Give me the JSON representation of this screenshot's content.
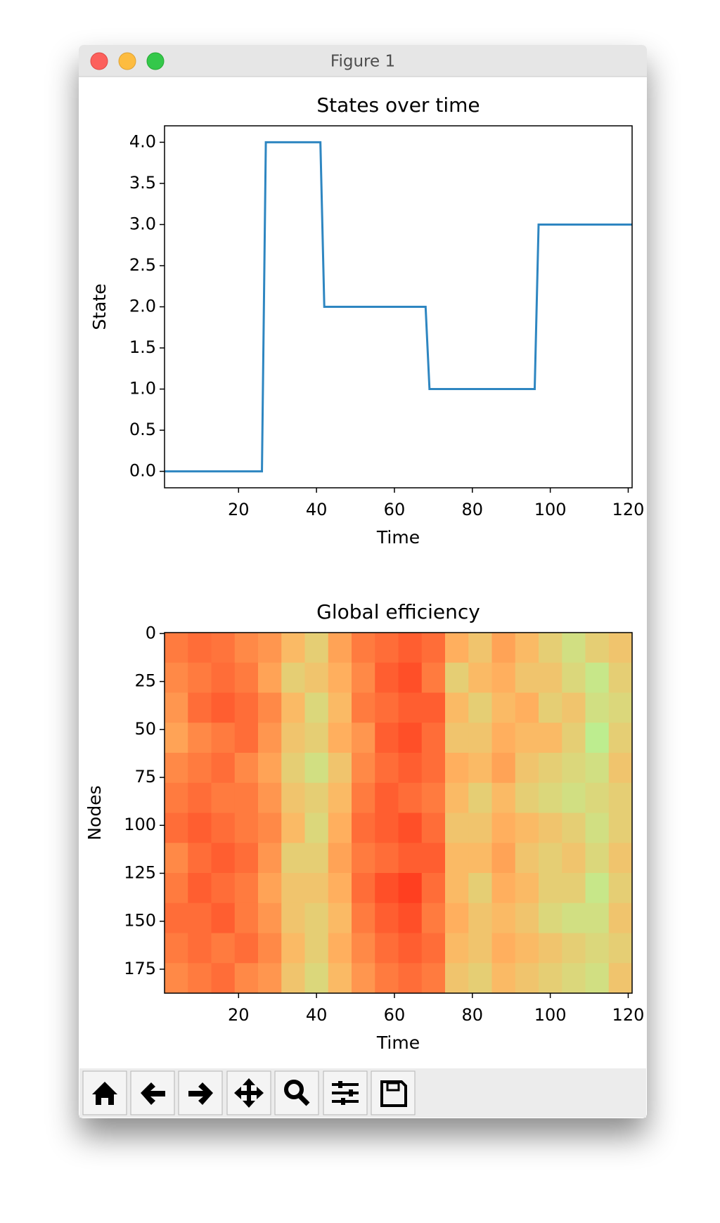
{
  "window": {
    "title": "Figure 1"
  },
  "chart_data": [
    {
      "type": "line",
      "title": "States over time",
      "x_label": "Time",
      "y_label": "State",
      "color": "#2e86c1",
      "x": [
        1,
        26,
        27,
        41,
        42,
        68,
        69,
        96,
        97,
        121
      ],
      "values": [
        0,
        0,
        4,
        4,
        2,
        2,
        1,
        1,
        3,
        3
      ],
      "xlim": [
        1,
        121
      ],
      "ylim": [
        -0.2,
        4.2
      ],
      "xticks": [
        20,
        40,
        60,
        80,
        100,
        120
      ],
      "yticks": [
        {
          "value": 0,
          "label": "0.0"
        },
        {
          "value": 0.5,
          "label": "0.5"
        },
        {
          "value": 1,
          "label": "1.0"
        },
        {
          "value": 1.5,
          "label": "1.5"
        },
        {
          "value": 2,
          "label": "2.0"
        },
        {
          "value": 2.5,
          "label": "2.5"
        },
        {
          "value": 3,
          "label": "3.0"
        },
        {
          "value": 3.5,
          "label": "3.5"
        },
        {
          "value": 4,
          "label": "4.0"
        }
      ]
    },
    {
      "type": "heatmap",
      "title": "Global efficiency",
      "x_label": "Time",
      "y_label": "Nodes",
      "colormap": "rainbow",
      "clim": [
        0,
        1
      ],
      "xlim": [
        1,
        121
      ],
      "ylim": [
        187.5,
        -0.5
      ],
      "xticks": [
        20,
        40,
        60,
        80,
        100,
        120
      ],
      "yticks": [
        0,
        25,
        50,
        75,
        100,
        125,
        150,
        175
      ],
      "values": [
        [
          0.84,
          0.86,
          0.85,
          0.82,
          0.8,
          0.74,
          0.7,
          0.78,
          0.84,
          0.86,
          0.88,
          0.86,
          0.76,
          0.72,
          0.78,
          0.74,
          0.7,
          0.66,
          0.7,
          0.72
        ],
        [
          0.82,
          0.84,
          0.86,
          0.84,
          0.78,
          0.7,
          0.72,
          0.76,
          0.82,
          0.88,
          0.9,
          0.84,
          0.7,
          0.74,
          0.76,
          0.72,
          0.72,
          0.68,
          0.64,
          0.7
        ],
        [
          0.8,
          0.86,
          0.88,
          0.86,
          0.82,
          0.74,
          0.68,
          0.74,
          0.84,
          0.86,
          0.88,
          0.88,
          0.74,
          0.7,
          0.74,
          0.76,
          0.7,
          0.72,
          0.66,
          0.68
        ],
        [
          0.78,
          0.82,
          0.84,
          0.86,
          0.8,
          0.72,
          0.7,
          0.76,
          0.8,
          0.88,
          0.9,
          0.86,
          0.72,
          0.72,
          0.76,
          0.74,
          0.74,
          0.7,
          0.62,
          0.7
        ],
        [
          0.82,
          0.84,
          0.86,
          0.82,
          0.78,
          0.7,
          0.66,
          0.72,
          0.82,
          0.86,
          0.88,
          0.86,
          0.76,
          0.74,
          0.78,
          0.72,
          0.7,
          0.68,
          0.66,
          0.72
        ],
        [
          0.84,
          0.86,
          0.84,
          0.84,
          0.8,
          0.72,
          0.7,
          0.74,
          0.84,
          0.88,
          0.86,
          0.84,
          0.74,
          0.7,
          0.74,
          0.7,
          0.68,
          0.66,
          0.68,
          0.7
        ],
        [
          0.86,
          0.88,
          0.86,
          0.84,
          0.82,
          0.74,
          0.68,
          0.76,
          0.86,
          0.88,
          0.9,
          0.86,
          0.72,
          0.72,
          0.76,
          0.74,
          0.72,
          0.7,
          0.66,
          0.7
        ],
        [
          0.82,
          0.86,
          0.88,
          0.86,
          0.8,
          0.7,
          0.7,
          0.78,
          0.84,
          0.86,
          0.88,
          0.88,
          0.74,
          0.74,
          0.78,
          0.72,
          0.7,
          0.72,
          0.68,
          0.72
        ],
        [
          0.84,
          0.88,
          0.86,
          0.84,
          0.78,
          0.72,
          0.72,
          0.76,
          0.86,
          0.9,
          0.92,
          0.86,
          0.74,
          0.7,
          0.76,
          0.74,
          0.7,
          0.7,
          0.64,
          0.7
        ],
        [
          0.86,
          0.86,
          0.88,
          0.84,
          0.8,
          0.72,
          0.7,
          0.74,
          0.84,
          0.88,
          0.9,
          0.84,
          0.76,
          0.72,
          0.74,
          0.72,
          0.68,
          0.66,
          0.66,
          0.72
        ],
        [
          0.84,
          0.86,
          0.84,
          0.86,
          0.82,
          0.74,
          0.7,
          0.76,
          0.82,
          0.86,
          0.88,
          0.86,
          0.74,
          0.72,
          0.76,
          0.74,
          0.72,
          0.7,
          0.68,
          0.7
        ],
        [
          0.82,
          0.84,
          0.86,
          0.82,
          0.8,
          0.72,
          0.68,
          0.74,
          0.8,
          0.84,
          0.86,
          0.84,
          0.72,
          0.7,
          0.74,
          0.72,
          0.7,
          0.68,
          0.66,
          0.72
        ]
      ]
    }
  ]
}
